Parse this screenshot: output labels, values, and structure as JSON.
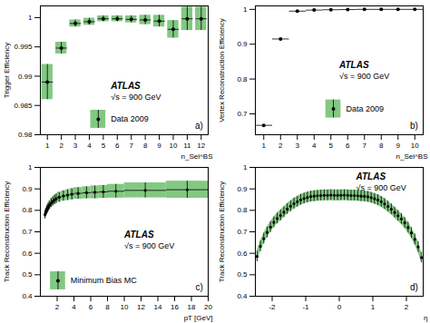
{
  "chart_data": [
    {
      "type": "scatter",
      "panel": "a)",
      "annotations": [
        "ATLAS",
        "√s = 900 GeV"
      ],
      "x_label": "n_Sel^BS",
      "y_label": "Trigger Efficiency",
      "x": [
        1,
        2,
        3,
        4,
        5,
        6,
        7,
        8,
        9,
        10,
        11,
        12
      ],
      "xlim": [
        0.5,
        12.5
      ],
      "xticks": [
        1,
        2,
        3,
        4,
        5,
        6,
        7,
        8,
        9,
        10,
        11,
        12
      ],
      "ylim": [
        0.98,
        1.002
      ],
      "yticks": [
        0.98,
        0.985,
        0.99,
        0.995,
        1
      ],
      "legend": "bottom-center",
      "grid": false,
      "series": [
        {
          "name": "Data 2009",
          "color": "#82c882",
          "marker": "circle",
          "values": [
            0.989,
            0.9948,
            0.999,
            0.9993,
            0.9998,
            0.9998,
            0.9997,
            0.9996,
            0.9994,
            0.998,
            0.9998,
            0.9998
          ],
          "errors": [
            0.003,
            0.001,
            0.0006,
            0.0006,
            0.0005,
            0.0005,
            0.0006,
            0.0008,
            0.001,
            0.0015,
            0.002,
            0.002
          ],
          "x_errors": [
            0.4,
            0.4,
            0.4,
            0.4,
            0.4,
            0.4,
            0.4,
            0.4,
            0.4,
            0.4,
            0.4,
            0.4
          ]
        }
      ]
    },
    {
      "type": "scatter",
      "panel": "b)",
      "annotations": [
        "ATLAS",
        "√s = 900 GeV"
      ],
      "x_label": "n_Sel^BS",
      "y_label": "Vertex Reconstruction Efficiency",
      "x": [
        1,
        2,
        3,
        4,
        5,
        6,
        7,
        8,
        9,
        10
      ],
      "xlim": [
        0.5,
        10.5
      ],
      "xticks": [
        1,
        2,
        3,
        4,
        5,
        6,
        7,
        8,
        9,
        10
      ],
      "ylim": [
        0.64,
        1.01
      ],
      "yticks": [
        0.7,
        0.8,
        0.9,
        1
      ],
      "legend": "bottom-right",
      "grid": false,
      "series": [
        {
          "name": "Data 2009",
          "color": "#82c882",
          "marker": "circle",
          "values": [
            0.667,
            0.915,
            0.995,
            0.998,
            0.999,
            0.9995,
            1,
            1,
            1,
            1
          ],
          "x_errors": [
            0.5,
            0.5,
            0.5,
            0.5,
            0.5,
            0.5,
            0.5,
            0.5,
            0.5,
            0.5
          ]
        }
      ]
    },
    {
      "type": "scatter",
      "panel": "c)",
      "annotations": [
        "ATLAS",
        "√s = 900 GeV"
      ],
      "x_label": "pT [GeV]",
      "y_label": "Track Reconstruction Efficiency",
      "x": [
        0.55,
        0.65,
        0.75,
        0.85,
        0.95,
        1.1,
        1.3,
        1.5,
        1.7,
        1.9,
        2.25,
        2.75,
        3.25,
        3.75,
        4.5,
        5.5,
        6.5,
        7.5,
        9,
        12.5,
        17.5
      ],
      "xlim": [
        0,
        20
      ],
      "xticks": [
        2,
        4,
        6,
        8,
        10,
        12,
        14,
        16,
        18,
        20
      ],
      "ylim": [
        0.4,
        1
      ],
      "yticks": [
        0.4,
        0.5,
        0.6,
        0.7,
        0.8,
        0.9,
        1
      ],
      "legend": "bottom-left",
      "grid": false,
      "series": [
        {
          "name": "Minimum Bias MC",
          "color": "#82c882",
          "marker": "circle",
          "values": [
            0.78,
            0.79,
            0.8,
            0.808,
            0.815,
            0.824,
            0.834,
            0.842,
            0.849,
            0.854,
            0.861,
            0.867,
            0.871,
            0.875,
            0.879,
            0.882,
            0.884,
            0.886,
            0.889,
            0.893,
            0.896
          ],
          "errors": [
            0.02,
            0.02,
            0.02,
            0.02,
            0.02,
            0.02,
            0.021,
            0.021,
            0.022,
            0.022,
            0.023,
            0.024,
            0.025,
            0.026,
            0.027,
            0.028,
            0.03,
            0.03,
            0.032,
            0.035,
            0.04
          ],
          "x_errors": [
            0.05,
            0.05,
            0.05,
            0.05,
            0.05,
            0.1,
            0.1,
            0.1,
            0.1,
            0.1,
            0.25,
            0.25,
            0.25,
            0.25,
            0.5,
            0.5,
            0.5,
            0.5,
            1,
            2.5,
            2.5
          ]
        }
      ]
    },
    {
      "type": "scatter",
      "panel": "d)",
      "annotations": [
        "ATLAS",
        "√s = 900 GeV"
      ],
      "x_label": "η",
      "y_label": "Track Reconstruction Efficiency",
      "x": [
        -2.45,
        -2.35,
        -2.25,
        -2.15,
        -2.05,
        -1.95,
        -1.85,
        -1.75,
        -1.65,
        -1.55,
        -1.45,
        -1.35,
        -1.25,
        -1.15,
        -1.05,
        -0.95,
        -0.85,
        -0.75,
        -0.65,
        -0.55,
        -0.45,
        -0.35,
        -0.25,
        -0.15,
        -0.05,
        0.05,
        0.15,
        0.25,
        0.35,
        0.45,
        0.55,
        0.65,
        0.75,
        0.85,
        0.95,
        1.05,
        1.15,
        1.25,
        1.35,
        1.45,
        1.55,
        1.65,
        1.75,
        1.85,
        1.95,
        2.05,
        2.15,
        2.25,
        2.35,
        2.45
      ],
      "xlim": [
        -2.5,
        2.5
      ],
      "xticks": [
        -2,
        -1,
        0,
        1,
        2
      ],
      "ylim": [
        0.4,
        1
      ],
      "yticks": [
        0.4,
        0.5,
        0.6,
        0.7,
        0.8,
        0.9,
        1
      ],
      "grid": false,
      "series": [
        {
          "color": "#82c882",
          "marker": "circle",
          "values": [
            0.585,
            0.632,
            0.668,
            0.697,
            0.722,
            0.744,
            0.762,
            0.776,
            0.791,
            0.806,
            0.819,
            0.831,
            0.84,
            0.849,
            0.855,
            0.86,
            0.864,
            0.866,
            0.868,
            0.869,
            0.87,
            0.87,
            0.871,
            0.87,
            0.87,
            0.87,
            0.871,
            0.87,
            0.869,
            0.869,
            0.868,
            0.866,
            0.865,
            0.863,
            0.859,
            0.854,
            0.848,
            0.84,
            0.83,
            0.818,
            0.805,
            0.79,
            0.775,
            0.76,
            0.742,
            0.72,
            0.695,
            0.665,
            0.63,
            0.58
          ],
          "errors": [
            0.025,
            0.025,
            0.025,
            0.025,
            0.025,
            0.025,
            0.025,
            0.025,
            0.025,
            0.025,
            0.025,
            0.025,
            0.025,
            0.025,
            0.025,
            0.025,
            0.025,
            0.025,
            0.025,
            0.025,
            0.025,
            0.025,
            0.025,
            0.025,
            0.025,
            0.025,
            0.025,
            0.025,
            0.025,
            0.025,
            0.025,
            0.025,
            0.025,
            0.025,
            0.025,
            0.025,
            0.025,
            0.025,
            0.025,
            0.025,
            0.025,
            0.025,
            0.025,
            0.025,
            0.025,
            0.025,
            0.025,
            0.025,
            0.025,
            0.025
          ]
        }
      ]
    }
  ]
}
